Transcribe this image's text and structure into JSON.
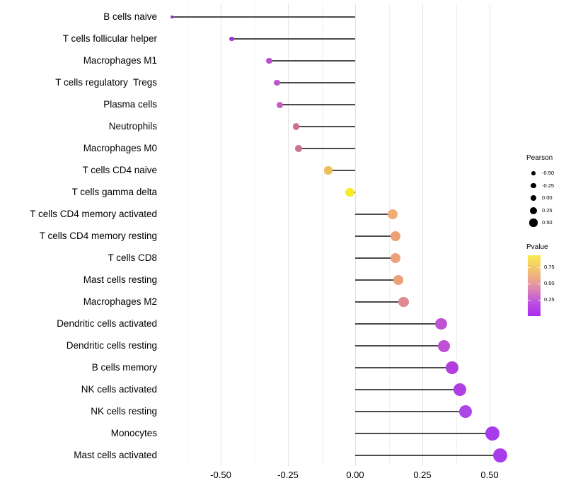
{
  "colors": {
    "background": "#FFFFFF",
    "stem": "#4A4A4A",
    "grid_major": "#E3E3E3",
    "grid_minor": "#F1F1F1",
    "axis_text": "#000000"
  },
  "chart_data": {
    "type": "scatter",
    "variant": "horizontal-lollipop",
    "title": "",
    "xlabel": "",
    "ylabel": "",
    "x_ticks": [
      -0.5,
      -0.25,
      0,
      0.25,
      0.5
    ],
    "x_tick_labels": [
      "-0.50",
      "-0.25",
      "0.00",
      "0.25",
      "0.50"
    ],
    "x_minor_gridlines": [
      -0.625,
      -0.375,
      -0.125,
      0.125,
      0.375
    ],
    "xlim": [
      -0.695,
      0.61
    ],
    "grid": "vertical-only",
    "legend_position": "right",
    "categories": [
      "B cells naive",
      "T cells follicular helper",
      "Macrophages M1",
      "T cells regulatory  Tregs",
      "Plasma cells",
      "Neutrophils",
      "Macrophages M0",
      "T cells CD4 naive",
      "T cells gamma delta",
      "T cells CD4 memory activated",
      "T cells CD4 memory resting",
      "T cells CD8",
      "Mast cells resting",
      "Macrophages M2",
      "Dendritic cells activated",
      "Dendritic cells resting",
      "B cells memory",
      "NK cells activated",
      "NK cells resting",
      "Monocytes",
      "Mast cells activated"
    ],
    "values": [
      -0.68,
      -0.46,
      -0.32,
      -0.29,
      -0.28,
      -0.22,
      -0.21,
      -0.1,
      -0.02,
      0.14,
      0.15,
      0.15,
      0.16,
      0.18,
      0.32,
      0.33,
      0.36,
      0.39,
      0.41,
      0.51,
      0.54
    ],
    "point_colors": [
      "#8F2FE0",
      "#9B35D8",
      "#BB50D3",
      "#BF56CF",
      "#C75EC2",
      "#CE7295",
      "#CE7295",
      "#EDBE58",
      "#F6EC28",
      "#F0AD74",
      "#ECA078",
      "#ECA078",
      "#ECA078",
      "#DD8A93",
      "#BE52D2",
      "#BD50D4",
      "#B23FDC",
      "#AE3FE2",
      "#AC46E6",
      "#A93CEA",
      "#A93CEA"
    ],
    "point_radii": [
      2.2,
      3.4,
      4.3,
      4.4,
      4.5,
      4.8,
      4.9,
      5.6,
      6.2,
      7.0,
      7.1,
      7.1,
      7.2,
      7.4,
      8.4,
      8.5,
      8.8,
      9.0,
      9.2,
      10.0,
      10.3
    ]
  },
  "legends": {
    "size": {
      "title": "Pearson",
      "dot_color": "#000000",
      "entries": [
        {
          "label": "-0.50",
          "radius": 2.8
        },
        {
          "label": "-0.25",
          "radius": 3.6
        },
        {
          "label": "0.00",
          "radius": 4.4
        },
        {
          "label": "0.25",
          "radius": 5.0
        },
        {
          "label": "0.50",
          "radius": 5.6
        }
      ]
    },
    "color": {
      "title": "Pvalue",
      "tick_labels": [
        {
          "label": "0.75",
          "frac_from_top": 0.198
        },
        {
          "label": "0.50",
          "frac_from_top": 0.465
        },
        {
          "label": "0.25",
          "frac_from_top": 0.733
        }
      ],
      "gradient_stops": [
        "#F9E94F 0%",
        "#F4C96C 20%",
        "#EFAD82 36%",
        "#E392A7 50%",
        "#D271C5 64%",
        "#BC4EE0 79%",
        "#A92CEF 100%"
      ]
    }
  }
}
